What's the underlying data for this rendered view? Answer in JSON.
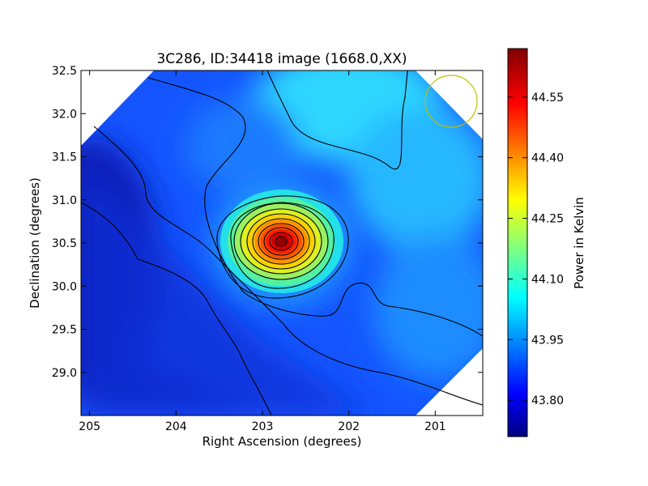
{
  "chart_data": {
    "type": "heatmap",
    "title": "3C286, ID:34418 image (1668.0,XX)",
    "xlabel": "Right Ascension (degrees)",
    "ylabel": "Declination (degrees)",
    "xlim": [
      205.1,
      200.45
    ],
    "ylim": [
      28.5,
      32.5
    ],
    "x_ticks": [
      205,
      204,
      203,
      202,
      201
    ],
    "x_tick_labels": [
      "205",
      "204",
      "203",
      "202",
      "201"
    ],
    "y_ticks": [
      29.0,
      29.5,
      30.0,
      30.5,
      31.0,
      31.5,
      32.0,
      32.5
    ],
    "y_tick_labels": [
      "29.0",
      "29.5",
      "30.0",
      "30.5",
      "31.0",
      "31.5",
      "32.0",
      "32.5"
    ],
    "colorbar": {
      "label": "Power in Kelvin",
      "range": [
        43.71,
        44.67
      ],
      "ticks": [
        43.8,
        43.95,
        44.1,
        44.25,
        44.4,
        44.55
      ],
      "tick_labels": [
        "43.80",
        "43.95",
        "44.10",
        "44.25",
        "44.40",
        "44.55"
      ],
      "colormap": "jet"
    },
    "source_peak": {
      "ra": 202.75,
      "dec": 30.5,
      "value": 44.67
    },
    "beam_circle": {
      "ra": 200.85,
      "dec": 32.15,
      "radius_deg": 0.3,
      "color": "#bfbf00"
    },
    "contour_color": "#000000",
    "grid": false,
    "footprint": "diamond"
  }
}
